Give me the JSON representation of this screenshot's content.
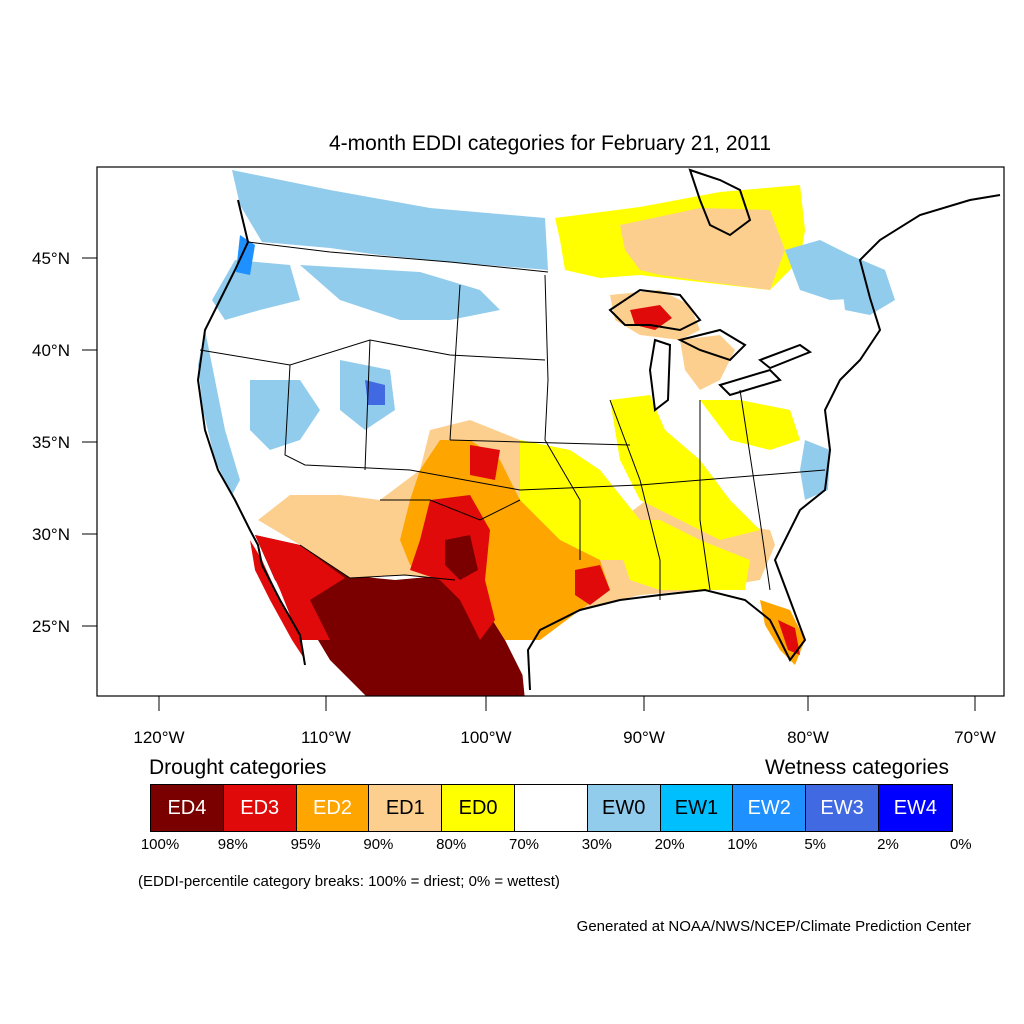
{
  "title": "4-month EDDI categories for February 21, 2011",
  "map": {
    "lat_labels": [
      "45°N",
      "40°N",
      "35°N",
      "30°N",
      "25°N"
    ],
    "lon_labels": [
      "120°W",
      "110°W",
      "100°W",
      "90°W",
      "80°W",
      "70°W"
    ]
  },
  "legend": {
    "drought_title": "Drought categories",
    "wetness_title": "Wetness categories",
    "categories": [
      {
        "label": "ED4",
        "color": "#7a0000",
        "text_color": "#ffffff"
      },
      {
        "label": "ED3",
        "color": "#e10a0a",
        "text_color": "#ffffff"
      },
      {
        "label": "ED2",
        "color": "#ffa500",
        "text_color": "#ffffff"
      },
      {
        "label": "ED1",
        "color": "#fdcf8f",
        "text_color": "#000000"
      },
      {
        "label": "ED0",
        "color": "#ffff00",
        "text_color": "#000000"
      },
      {
        "label": "",
        "color": "#ffffff",
        "text_color": "#000000"
      },
      {
        "label": "EW0",
        "color": "#92ccec",
        "text_color": "#000000"
      },
      {
        "label": "EW1",
        "color": "#00bfff",
        "text_color": "#000000"
      },
      {
        "label": "EW2",
        "color": "#1e90ff",
        "text_color": "#ffffff"
      },
      {
        "label": "EW3",
        "color": "#4169e1",
        "text_color": "#ffffff"
      },
      {
        "label": "EW4",
        "color": "#0000ff",
        "text_color": "#ffffff"
      }
    ],
    "breaks": [
      "100%",
      "98%",
      "95%",
      "90%",
      "80%",
      "70%",
      "30%",
      "20%",
      "10%",
      "5%",
      "2%",
      "0%"
    ]
  },
  "note": "(EDDI-percentile category breaks: 100% = driest; 0% = wettest)",
  "credit": "Generated at NOAA/NWS/NCEP/Climate Prediction Center"
}
